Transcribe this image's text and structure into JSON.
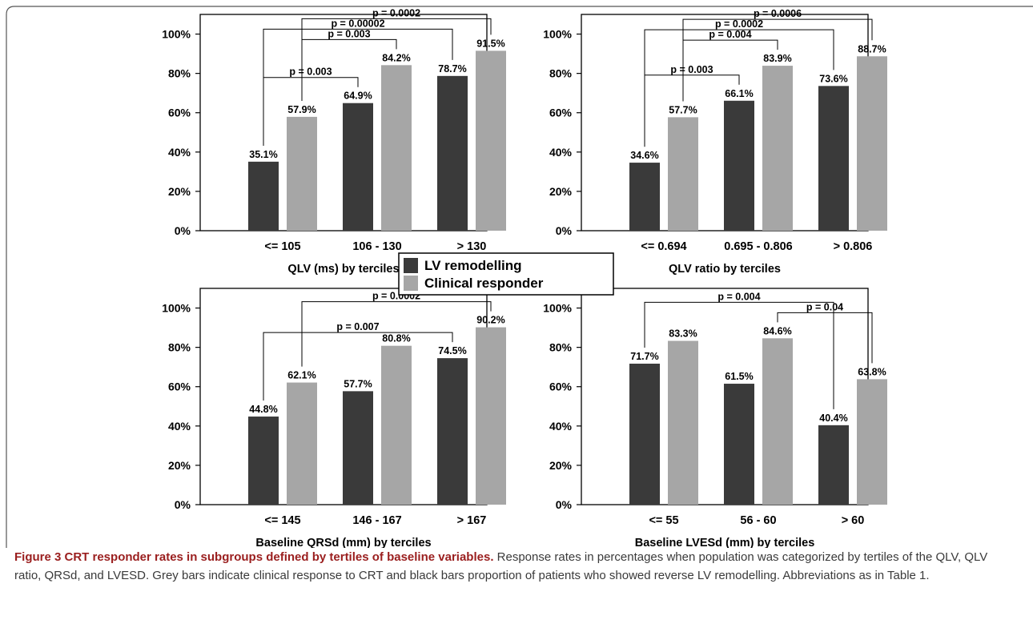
{
  "colors": {
    "lv_remodelling": "#3a3a3a",
    "clinical_responder": "#a6a6a6",
    "caption_lead": "#9a1e1e"
  },
  "legend": {
    "items": [
      "LV remodelling",
      "Clinical responder"
    ]
  },
  "caption": {
    "lead": "Figure 3 CRT responder rates in subgroups defined by tertiles of baseline variables.",
    "body": " Response rates in percentages when population was categorized by tertiles of the QLV, QLV ratio, QRSd, and LVESD. Grey bars indicate clinical response to CRT and black bars proportion of patients who showed reverse LV remodelling. Abbreviations as in Table 1."
  },
  "chart_data": [
    {
      "type": "bar",
      "xlabel": "QLV (ms) by terciles",
      "ylabel": "",
      "ylim": [
        0,
        110
      ],
      "yticks": [
        "0%",
        "20%",
        "40%",
        "60%",
        "80%",
        "100%"
      ],
      "categories": [
        "<= 105",
        "106 - 130",
        "> 130"
      ],
      "series": [
        {
          "name": "LV remodelling",
          "values": [
            35.1,
            64.9,
            78.7
          ],
          "labels": [
            "35.1%",
            "64.9%",
            "78.7%"
          ]
        },
        {
          "name": "Clinical responder",
          "values": [
            57.9,
            84.2,
            91.5
          ],
          "labels": [
            "57.9%",
            "84.2%",
            "91.5%"
          ]
        }
      ],
      "comparisons": [
        {
          "label": "p = 0.003",
          "from": [
            0,
            0
          ],
          "to": [
            1,
            0
          ]
        },
        {
          "label": "p = 0.00002",
          "from": [
            0,
            0
          ],
          "to": [
            2,
            0
          ]
        },
        {
          "label": "p = 0.003",
          "from": [
            0,
            1
          ],
          "to": [
            1,
            1
          ]
        },
        {
          "label": "p = 0.0002",
          "from": [
            0,
            1
          ],
          "to": [
            2,
            1
          ]
        }
      ]
    },
    {
      "type": "bar",
      "xlabel": "QLV ratio by terciles",
      "ylabel": "",
      "ylim": [
        0,
        110
      ],
      "yticks": [
        "0%",
        "20%",
        "40%",
        "60%",
        "80%",
        "100%"
      ],
      "categories": [
        "<= 0.694",
        "0.695 - 0.806",
        "> 0.806"
      ],
      "series": [
        {
          "name": "LV remodelling",
          "values": [
            34.6,
            66.1,
            73.6
          ],
          "labels": [
            "34.6%",
            "66.1%",
            "73.6%"
          ]
        },
        {
          "name": "Clinical responder",
          "values": [
            57.7,
            83.9,
            88.7
          ],
          "labels": [
            "57.7%",
            "83.9%",
            "88.7%"
          ]
        }
      ],
      "comparisons": [
        {
          "label": "p = 0.003",
          "from": [
            0,
            0
          ],
          "to": [
            1,
            0
          ]
        },
        {
          "label": "p = 0.0002",
          "from": [
            0,
            0
          ],
          "to": [
            2,
            0
          ]
        },
        {
          "label": "p = 0.004",
          "from": [
            0,
            1
          ],
          "to": [
            1,
            1
          ]
        },
        {
          "label": "p = 0.0006",
          "from": [
            0,
            1
          ],
          "to": [
            2,
            1
          ]
        }
      ]
    },
    {
      "type": "bar",
      "xlabel": "Baseline QRSd (mm) by terciles",
      "ylabel": "",
      "ylim": [
        0,
        110
      ],
      "yticks": [
        "0%",
        "20%",
        "40%",
        "60%",
        "80%",
        "100%"
      ],
      "categories": [
        "<= 145",
        "146 - 167",
        "> 167"
      ],
      "series": [
        {
          "name": "LV remodelling",
          "values": [
            44.8,
            57.7,
            74.5
          ],
          "labels": [
            "44.8%",
            "57.7%",
            "74.5%"
          ]
        },
        {
          "name": "Clinical responder",
          "values": [
            62.1,
            80.8,
            90.2
          ],
          "labels": [
            "62.1%",
            "80.8%",
            "90.2%"
          ]
        }
      ],
      "comparisons": [
        {
          "label": "p = 0.007",
          "from": [
            0,
            0
          ],
          "to": [
            2,
            0
          ]
        },
        {
          "label": "p = 0.0002",
          "from": [
            0,
            1
          ],
          "to": [
            2,
            1
          ]
        }
      ]
    },
    {
      "type": "bar",
      "xlabel": "Baseline LVESd (mm) by terciles",
      "ylabel": "",
      "ylim": [
        0,
        110
      ],
      "yticks": [
        "0%",
        "20%",
        "40%",
        "60%",
        "80%",
        "100%"
      ],
      "categories": [
        "<= 55",
        "56 - 60",
        "> 60"
      ],
      "series": [
        {
          "name": "LV remodelling",
          "values": [
            71.7,
            61.5,
            40.4
          ],
          "labels": [
            "71.7%",
            "61.5%",
            "40.4%"
          ]
        },
        {
          "name": "Clinical responder",
          "values": [
            83.3,
            84.6,
            63.8
          ],
          "labels": [
            "83.3%",
            "84.6%",
            "63.8%"
          ]
        }
      ],
      "comparisons": [
        {
          "label": "p = 0.004",
          "from": [
            0,
            0
          ],
          "to": [
            2,
            0
          ]
        },
        {
          "label": "p = 0.04",
          "from": [
            1,
            1
          ],
          "to": [
            2,
            1
          ]
        }
      ]
    }
  ]
}
